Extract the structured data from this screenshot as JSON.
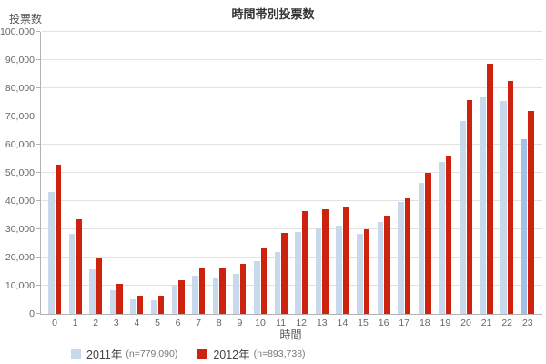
{
  "chart": {
    "title": "時間帯別投票数",
    "y_axis_title": "投票数",
    "x_axis_title": "時間"
  },
  "legend": {
    "items": [
      {
        "year_label": "2011年",
        "n_label": "(n=779,090)",
        "color": "#c8d9ec"
      },
      {
        "year_label": "2012年",
        "n_label": "(n=893,738)",
        "color": "#cc220e"
      }
    ]
  },
  "chart_data": {
    "type": "bar",
    "title": "時間帯別投票数",
    "xlabel": "時間",
    "ylabel": "投票数",
    "categories": [
      "0",
      "1",
      "2",
      "3",
      "4",
      "5",
      "6",
      "7",
      "8",
      "9",
      "10",
      "11",
      "12",
      "13",
      "14",
      "15",
      "16",
      "17",
      "18",
      "19",
      "20",
      "21",
      "22",
      "23"
    ],
    "series": [
      {
        "name": "2011年 (n=779,090)",
        "color": "#c8d9ec",
        "values": [
          43200,
          28400,
          15800,
          8500,
          5300,
          4900,
          10200,
          13500,
          12800,
          14200,
          18700,
          22000,
          29000,
          30200,
          31400,
          28500,
          32600,
          39600,
          46500,
          53800,
          68300,
          76800,
          75400,
          61800
        ]
      },
      {
        "name": "2012年 (n=893,738)",
        "color": "#cc220e",
        "values": [
          52900,
          33600,
          19700,
          10600,
          6600,
          6500,
          11900,
          16400,
          16500,
          17700,
          23700,
          28700,
          36300,
          37200,
          37600,
          30100,
          34900,
          41100,
          50000,
          56200,
          75800,
          88600,
          82700,
          71900
        ]
      }
    ],
    "highlight": {
      "series_index": 0,
      "category": "23",
      "color": "#a3c0e2"
    },
    "ylim": [
      0,
      100000
    ],
    "ytick_step": 10000,
    "ytick_labels": [
      "0",
      "10,000",
      "20,000",
      "30,000",
      "40,000",
      "50,000",
      "60,000",
      "70,000",
      "80,000",
      "90,000",
      "100,000"
    ],
    "grid": true,
    "legend_position": "bottom-left"
  }
}
